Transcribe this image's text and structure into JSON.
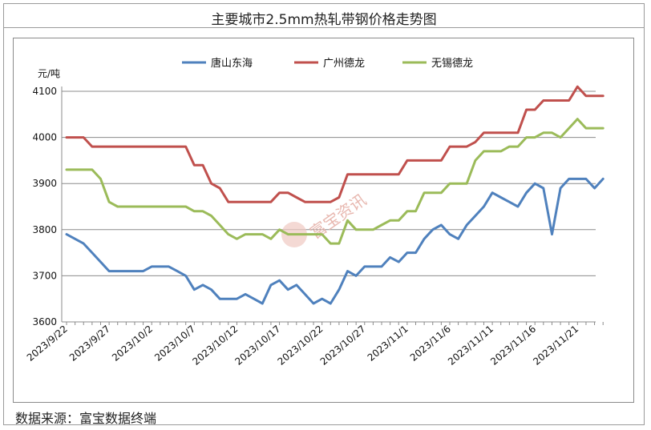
{
  "page": {
    "title": "主要城市2.5mm热轧带钢价格走势图",
    "source": "数据来源：富宝数据终端"
  },
  "watermark": {
    "text": "富宝资讯"
  },
  "chart_data": {
    "type": "line",
    "title": "主要城市2.5mm热轧带钢价格走势图",
    "ylabel": "元/吨",
    "xlabel": "",
    "ylim": [
      3600,
      4100
    ],
    "yticks": [
      3600,
      3700,
      3800,
      3900,
      4000,
      4100
    ],
    "grid": true,
    "legend_position": "top",
    "x_tick_labels": [
      "2023/9/22",
      "2023/9/27",
      "2023/10/2",
      "2023/10/7",
      "2023/10/12",
      "2023/10/17",
      "2023/10/22",
      "2023/10/27",
      "2023/11/1",
      "2023/11/6",
      "2023/11/11",
      "2023/11/16",
      "2023/11/21"
    ],
    "series": [
      {
        "name": "唐山东海",
        "color": "#4f81bd",
        "values": [
          3790,
          3780,
          3770,
          3750,
          3730,
          3710,
          3710,
          3710,
          3710,
          3710,
          3720,
          3720,
          3720,
          3710,
          3700,
          3670,
          3680,
          3670,
          3650,
          3650,
          3650,
          3660,
          3650,
          3640,
          3680,
          3690,
          3670,
          3680,
          3660,
          3640,
          3650,
          3640,
          3670,
          3710,
          3700,
          3720,
          3720,
          3720,
          3740,
          3730,
          3750,
          3750,
          3780,
          3800,
          3810,
          3790,
          3780,
          3810,
          3830,
          3850,
          3880,
          3870,
          3860,
          3850,
          3880,
          3900,
          3890,
          3790,
          3890,
          3910,
          3910,
          3910,
          3890,
          3910
        ]
      },
      {
        "name": "广州德龙",
        "color": "#c0504d",
        "values": [
          4000,
          4000,
          4000,
          3980,
          3980,
          3980,
          3980,
          3980,
          3980,
          3980,
          3980,
          3980,
          3980,
          3980,
          3980,
          3940,
          3940,
          3900,
          3890,
          3860,
          3860,
          3860,
          3860,
          3860,
          3860,
          3880,
          3880,
          3870,
          3860,
          3860,
          3860,
          3860,
          3870,
          3920,
          3920,
          3920,
          3920,
          3920,
          3920,
          3920,
          3950,
          3950,
          3950,
          3950,
          3950,
          3980,
          3980,
          3980,
          3990,
          4010,
          4010,
          4010,
          4010,
          4010,
          4060,
          4060,
          4080,
          4080,
          4080,
          4080,
          4110,
          4090,
          4090,
          4090
        ]
      },
      {
        "name": "无锡德龙",
        "color": "#9bbb59",
        "values": [
          3930,
          3930,
          3930,
          3930,
          3910,
          3860,
          3850,
          3850,
          3850,
          3850,
          3850,
          3850,
          3850,
          3850,
          3850,
          3840,
          3840,
          3830,
          3810,
          3790,
          3780,
          3790,
          3790,
          3790,
          3780,
          3800,
          3790,
          3790,
          3790,
          3790,
          3790,
          3770,
          3770,
          3820,
          3800,
          3800,
          3800,
          3810,
          3820,
          3820,
          3840,
          3840,
          3880,
          3880,
          3880,
          3900,
          3900,
          3900,
          3950,
          3970,
          3970,
          3970,
          3980,
          3980,
          4000,
          4000,
          4010,
          4010,
          4000,
          4020,
          4040,
          4020,
          4020,
          4020
        ]
      }
    ]
  }
}
